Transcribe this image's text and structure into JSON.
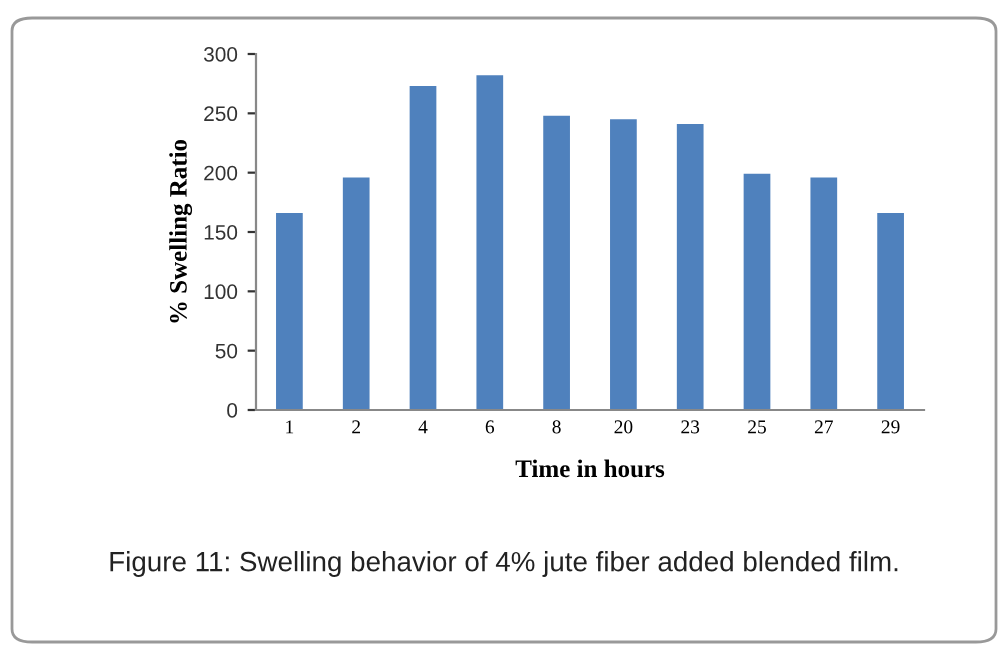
{
  "chart_data": {
    "type": "bar",
    "xlabel": "Time in hours",
    "ylabel": "% Swelling Ratio",
    "categories": [
      "1",
      "2",
      "4",
      "6",
      "8",
      "20",
      "23",
      "25",
      "27",
      "29"
    ],
    "values": [
      166,
      196,
      273,
      282,
      248,
      245,
      241,
      199,
      196,
      166
    ],
    "color": "#4f81bd",
    "ylim": [
      0,
      300
    ],
    "yticks": [
      0,
      50,
      100,
      150,
      200,
      250,
      300
    ],
    "grid": false,
    "annotations": [
      "Figure 11: Swelling behavior of 4% jute fiber added blended film."
    ]
  }
}
